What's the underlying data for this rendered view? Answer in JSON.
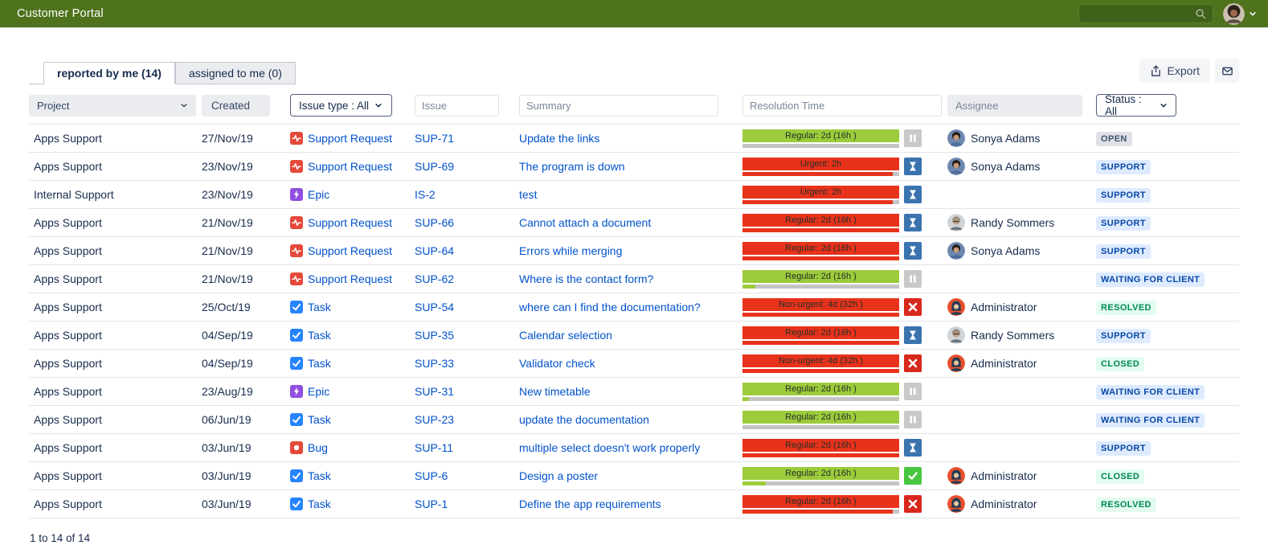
{
  "colors": {
    "header_bg": "#4e731c",
    "link_blue": "#0052cc",
    "sla_green": "#9ccb3b",
    "sla_red": "#e8321b",
    "badge_blue_bg": "#deebff",
    "badge_blue_text": "#0747a6",
    "badge_green_bg": "#e3fcef",
    "badge_green_text": "#00875a",
    "badge_gray_bg": "#dfe1e6",
    "badge_gray_text": "#42526e"
  },
  "header": {
    "title": "Customer Portal",
    "search_value": ""
  },
  "tabs": [
    {
      "label": "reported by me (14)",
      "active": true
    },
    {
      "label": "assigned to me (0)",
      "active": false
    }
  ],
  "toolbar": {
    "export_label": "Export"
  },
  "filters": {
    "project_label": "Project",
    "created_label": "Created",
    "issue_type_label": "Issue type : All",
    "issue_placeholder": "Issue",
    "summary_placeholder": "Summary",
    "resolution_placeholder": "Resolution Time",
    "assignee_placeholder": "Assignee",
    "status_label": "Status : All"
  },
  "table": {
    "rows": [
      {
        "project": "Apps Support",
        "created": "27/Nov/19",
        "type_label": "Support Request",
        "type_icon": "support-request",
        "key": "SUP-71",
        "summary": "Update the links",
        "sla_label": "Regular: 2d (16h )",
        "sla_color": "green",
        "sla_pct": 0,
        "sla_icon": "pause",
        "assignee": "Sonya Adams",
        "avatar": "sonya",
        "status": "OPEN",
        "status_style": "gray"
      },
      {
        "project": "Apps Support",
        "created": "23/Nov/19",
        "type_label": "Support Request",
        "type_icon": "support-request",
        "key": "SUP-69",
        "summary": "The program is down",
        "sla_label": "Urgent: 2h",
        "sla_color": "red",
        "sla_pct": 96,
        "sla_icon": "hourglass",
        "assignee": "Sonya Adams",
        "avatar": "sonya",
        "status": "SUPPORT",
        "status_style": "blue"
      },
      {
        "project": "Internal Support",
        "created": "23/Nov/19",
        "type_label": "Epic",
        "type_icon": "epic",
        "key": "IS-2",
        "summary": "test",
        "sla_label": "Urgent: 2h",
        "sla_color": "red",
        "sla_pct": 96,
        "sla_icon": "hourglass",
        "assignee": "",
        "avatar": "",
        "status": "SUPPORT",
        "status_style": "blue"
      },
      {
        "project": "Apps Support",
        "created": "21/Nov/19",
        "type_label": "Support Request",
        "type_icon": "support-request",
        "key": "SUP-66",
        "summary": "Cannot attach a document",
        "sla_label": "Regular: 2d (16h )",
        "sla_color": "red",
        "sla_pct": 100,
        "sla_icon": "hourglass",
        "assignee": "Randy Sommers",
        "avatar": "randy",
        "status": "SUPPORT",
        "status_style": "blue"
      },
      {
        "project": "Apps Support",
        "created": "21/Nov/19",
        "type_label": "Support Request",
        "type_icon": "support-request",
        "key": "SUP-64",
        "summary": "Errors while merging",
        "sla_label": "Regular: 2d (16h )",
        "sla_color": "red",
        "sla_pct": 100,
        "sla_icon": "hourglass",
        "assignee": "Sonya Adams",
        "avatar": "sonya",
        "status": "SUPPORT",
        "status_style": "blue"
      },
      {
        "project": "Apps Support",
        "created": "21/Nov/19",
        "type_label": "Support Request",
        "type_icon": "support-request",
        "key": "SUP-62",
        "summary": "Where is the contact form?",
        "sla_label": "Regular: 2d (16h )",
        "sla_color": "green",
        "sla_pct": 8,
        "sla_icon": "pause",
        "assignee": "",
        "avatar": "",
        "status": "WAITING FOR CLIENT",
        "status_style": "blue"
      },
      {
        "project": "Apps Support",
        "created": "25/Oct/19",
        "type_label": "Task",
        "type_icon": "task",
        "key": "SUP-54",
        "summary": "where can I find the documentation?",
        "sla_label": "Non-urgent: 4d (32h )",
        "sla_color": "red",
        "sla_pct": 100,
        "sla_icon": "x",
        "assignee": "Administrator",
        "avatar": "admin",
        "status": "RESOLVED",
        "status_style": "green"
      },
      {
        "project": "Apps Support",
        "created": "04/Sep/19",
        "type_label": "Task",
        "type_icon": "task",
        "key": "SUP-35",
        "summary": "Calendar selection",
        "sla_label": "Regular: 2d (16h )",
        "sla_color": "red",
        "sla_pct": 100,
        "sla_icon": "hourglass",
        "assignee": "Randy Sommers",
        "avatar": "randy",
        "status": "SUPPORT",
        "status_style": "blue"
      },
      {
        "project": "Apps Support",
        "created": "04/Sep/19",
        "type_label": "Task",
        "type_icon": "task",
        "key": "SUP-33",
        "summary": "Validator check",
        "sla_label": "Non-urgent: 4d (32h )",
        "sla_color": "red",
        "sla_pct": 100,
        "sla_icon": "x",
        "assignee": "Administrator",
        "avatar": "admin",
        "status": "CLOSED",
        "status_style": "green"
      },
      {
        "project": "Apps Support",
        "created": "23/Aug/19",
        "type_label": "Epic",
        "type_icon": "epic",
        "key": "SUP-31",
        "summary": "New timetable",
        "sla_label": "Regular: 2d (16h )",
        "sla_color": "green",
        "sla_pct": 4,
        "sla_icon": "pause",
        "assignee": "",
        "avatar": "",
        "status": "WAITING FOR CLIENT",
        "status_style": "blue"
      },
      {
        "project": "Apps Support",
        "created": "06/Jun/19",
        "type_label": "Task",
        "type_icon": "task",
        "key": "SUP-23",
        "summary": "update the documentation",
        "sla_label": "Regular: 2d (16h )",
        "sla_color": "green",
        "sla_pct": 0,
        "sla_icon": "pause",
        "assignee": "",
        "avatar": "",
        "status": "WAITING FOR CLIENT",
        "status_style": "blue"
      },
      {
        "project": "Apps Support",
        "created": "03/Jun/19",
        "type_label": "Bug",
        "type_icon": "bug",
        "key": "SUP-11",
        "summary": "multiple select doesn't work properly",
        "sla_label": "Regular: 2d (16h )",
        "sla_color": "red",
        "sla_pct": 100,
        "sla_icon": "hourglass",
        "assignee": "",
        "avatar": "",
        "status": "SUPPORT",
        "status_style": "blue"
      },
      {
        "project": "Apps Support",
        "created": "03/Jun/19",
        "type_label": "Task",
        "type_icon": "task",
        "key": "SUP-6",
        "summary": "Design a poster",
        "sla_label": "Regular: 2d (16h )",
        "sla_color": "green",
        "sla_pct": 15,
        "sla_icon": "check",
        "assignee": "Administrator",
        "avatar": "admin",
        "status": "CLOSED",
        "status_style": "green"
      },
      {
        "project": "Apps Support",
        "created": "03/Jun/19",
        "type_label": "Task",
        "type_icon": "task",
        "key": "SUP-1",
        "summary": "Define the app requirements",
        "sla_label": "Regular: 2d (16h )",
        "sla_color": "red",
        "sla_pct": 96,
        "sla_icon": "x",
        "assignee": "Administrator",
        "avatar": "admin",
        "status": "RESOLVED",
        "status_style": "green"
      }
    ]
  },
  "footer": {
    "count_text": "1 to 14 of 14"
  }
}
